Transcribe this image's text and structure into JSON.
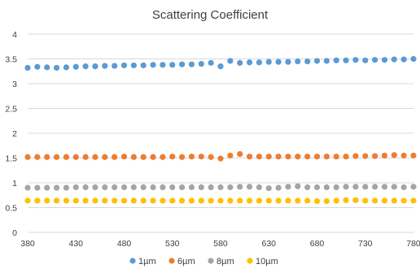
{
  "chart_data": {
    "type": "scatter",
    "title": "Scattering Coefficient",
    "xlabel": "",
    "ylabel": "",
    "xlim": [
      380,
      780
    ],
    "ylim": [
      0,
      4
    ],
    "x_ticks": [
      "380",
      "430",
      "480",
      "530",
      "580",
      "630",
      "680",
      "730",
      "780"
    ],
    "y_ticks": [
      "0",
      "0.5",
      "1",
      "1.5",
      "2",
      "2.5",
      "3",
      "3.5",
      "4"
    ],
    "grid": true,
    "legend_position": "bottom",
    "x": [
      380,
      390,
      400,
      410,
      420,
      430,
      440,
      450,
      460,
      470,
      480,
      490,
      500,
      510,
      520,
      530,
      540,
      550,
      560,
      570,
      580,
      590,
      600,
      610,
      620,
      630,
      640,
      650,
      660,
      670,
      680,
      690,
      700,
      710,
      720,
      730,
      740,
      750,
      760,
      770,
      780
    ],
    "series": [
      {
        "name": "1µm",
        "color": "#5b9bd5",
        "values": [
          3.32,
          3.34,
          3.33,
          3.32,
          3.33,
          3.34,
          3.35,
          3.35,
          3.36,
          3.36,
          3.37,
          3.37,
          3.37,
          3.38,
          3.38,
          3.38,
          3.39,
          3.39,
          3.4,
          3.42,
          3.35,
          3.46,
          3.42,
          3.43,
          3.43,
          3.44,
          3.44,
          3.44,
          3.45,
          3.45,
          3.46,
          3.46,
          3.47,
          3.47,
          3.48,
          3.47,
          3.48,
          3.48,
          3.49,
          3.49,
          3.5
        ]
      },
      {
        "name": "6µm",
        "color": "#ed7d31",
        "values": [
          1.52,
          1.52,
          1.52,
          1.52,
          1.52,
          1.52,
          1.52,
          1.52,
          1.52,
          1.52,
          1.53,
          1.52,
          1.52,
          1.52,
          1.52,
          1.53,
          1.52,
          1.53,
          1.53,
          1.52,
          1.49,
          1.55,
          1.58,
          1.53,
          1.53,
          1.53,
          1.53,
          1.53,
          1.53,
          1.53,
          1.53,
          1.53,
          1.53,
          1.53,
          1.54,
          1.54,
          1.54,
          1.55,
          1.56,
          1.55,
          1.55
        ]
      },
      {
        "name": "8µm",
        "color": "#a5a5a5",
        "values": [
          0.9,
          0.9,
          0.9,
          0.9,
          0.9,
          0.91,
          0.91,
          0.91,
          0.91,
          0.91,
          0.91,
          0.91,
          0.91,
          0.91,
          0.91,
          0.91,
          0.91,
          0.91,
          0.91,
          0.91,
          0.91,
          0.91,
          0.92,
          0.92,
          0.91,
          0.89,
          0.9,
          0.92,
          0.93,
          0.91,
          0.91,
          0.91,
          0.91,
          0.92,
          0.92,
          0.92,
          0.92,
          0.92,
          0.92,
          0.91,
          0.92
        ]
      },
      {
        "name": "10µm",
        "color": "#ffc000",
        "values": [
          0.64,
          0.64,
          0.64,
          0.64,
          0.64,
          0.64,
          0.64,
          0.64,
          0.64,
          0.64,
          0.64,
          0.64,
          0.64,
          0.64,
          0.64,
          0.64,
          0.64,
          0.64,
          0.64,
          0.64,
          0.64,
          0.64,
          0.64,
          0.64,
          0.64,
          0.64,
          0.64,
          0.64,
          0.64,
          0.64,
          0.63,
          0.63,
          0.64,
          0.65,
          0.65,
          0.64,
          0.64,
          0.64,
          0.64,
          0.64,
          0.64
        ]
      }
    ]
  }
}
